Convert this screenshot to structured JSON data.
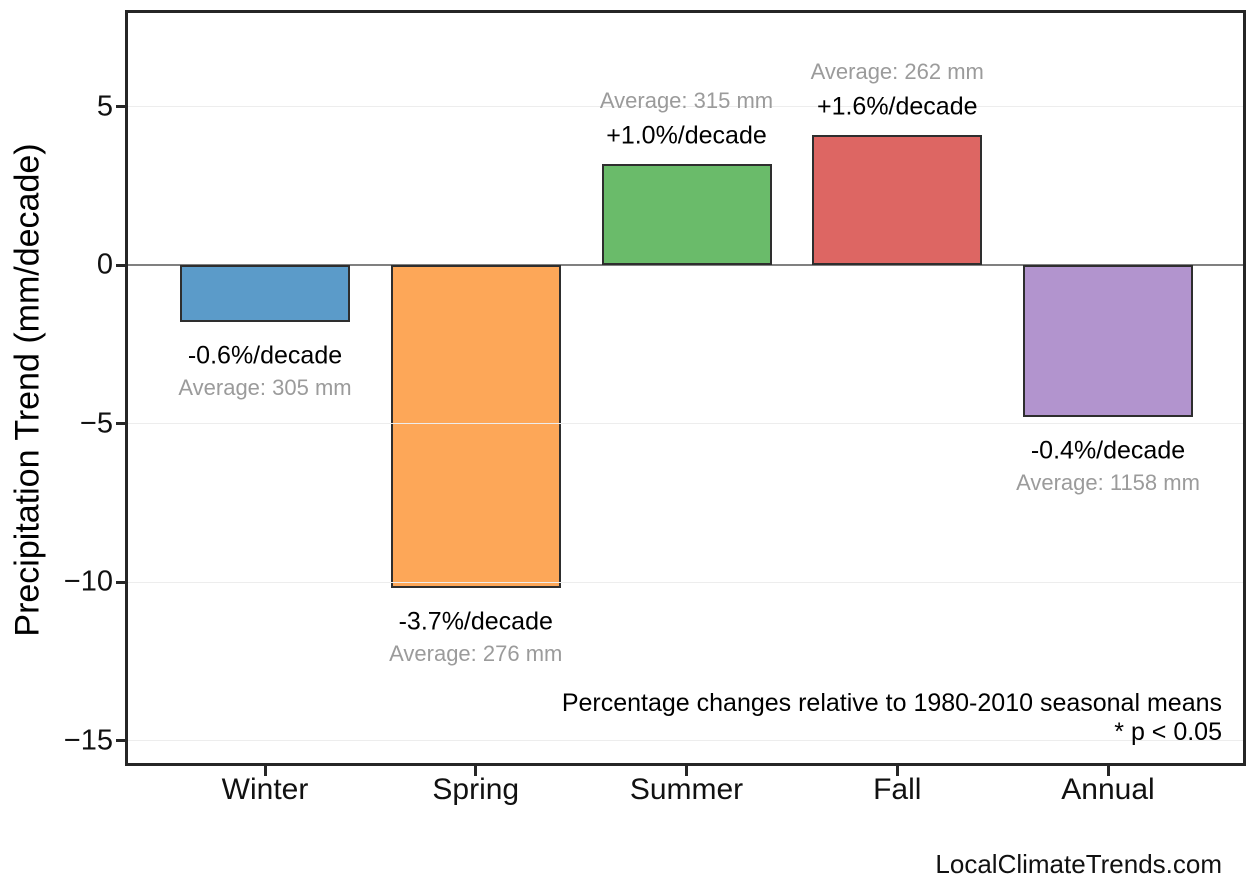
{
  "chart_data": {
    "type": "bar",
    "categories": [
      "Winter",
      "Spring",
      "Summer",
      "Fall",
      "Annual"
    ],
    "values": [
      -1.8,
      -10.2,
      3.2,
      4.1,
      -4.8
    ],
    "pct_labels": [
      "-0.6%/decade",
      "-3.7%/decade",
      "+1.0%/decade",
      "+1.6%/decade",
      "-0.4%/decade"
    ],
    "avg_labels": [
      "Average: 305 mm",
      "Average: 276 mm",
      "Average: 315 mm",
      "Average: 262 mm",
      "Average: 1158 mm"
    ],
    "bar_colors": [
      "#5b9bc9",
      "#fda758",
      "#6abb6a",
      "#dd6663",
      "#b294ce"
    ],
    "bar_edge_color": "#2e2e2e",
    "title": "",
    "xlabel": "",
    "ylabel": "Precipitation Trend (mm/decade)",
    "yticks": [
      5,
      0,
      -5,
      -10,
      -15
    ],
    "ylim": [
      -15.8,
      7.9
    ],
    "grid": true,
    "legend": false,
    "annotations": [
      "Percentage changes relative to 1980-2010 seasonal means",
      "* p < 0.05"
    ],
    "watermark": "LocalClimateTrends.com"
  },
  "colors": {
    "frame": "#262626",
    "zero_line": "#808080",
    "gridline": "#ededed",
    "pct_text": "#000000",
    "avg_text": "#9b9b9b",
    "tick_text": "#111111"
  }
}
